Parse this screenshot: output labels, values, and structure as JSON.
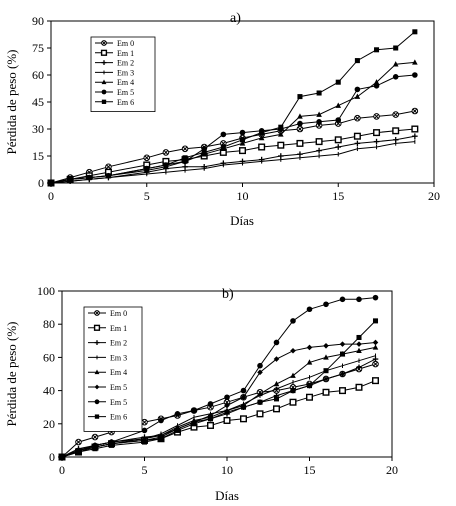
{
  "chart_data": [
    {
      "type": "line",
      "panel_label": "a)",
      "xlabel": "Días",
      "ylabel": "Pérdida de peso (%)",
      "xlim": [
        0,
        20
      ],
      "ylim": [
        0,
        90
      ],
      "xticks": [
        0,
        5,
        10,
        15,
        20
      ],
      "yticks": [
        0,
        15,
        30,
        45,
        60,
        75,
        90
      ],
      "grid": false,
      "legend": "upper-left",
      "series": [
        {
          "name": "Em 0",
          "marker": "circle-x",
          "x": [
            0,
            1,
            2,
            3,
            5,
            6,
            7,
            8,
            9,
            10,
            11,
            12,
            13,
            14,
            15,
            16,
            17,
            18,
            19
          ],
          "y": [
            0,
            3,
            6,
            9,
            14,
            17,
            19,
            20,
            22,
            25,
            27,
            29,
            30,
            32,
            33,
            36,
            37,
            38,
            40
          ]
        },
        {
          "name": "Em 1",
          "marker": "square-open",
          "x": [
            0,
            1,
            2,
            3,
            5,
            6,
            7,
            8,
            9,
            10,
            11,
            12,
            13,
            14,
            15,
            16,
            17,
            18,
            19
          ],
          "y": [
            0,
            2,
            4,
            6,
            10,
            12,
            13,
            15,
            17,
            18,
            20,
            21,
            22,
            23,
            24,
            26,
            28,
            29,
            30
          ]
        },
        {
          "name": "Em 2",
          "marker": "plus",
          "x": [
            0,
            1,
            2,
            3,
            5,
            6,
            7,
            8,
            9,
            10,
            11,
            12,
            13,
            14,
            15,
            16,
            17,
            18,
            19
          ],
          "y": [
            0,
            1,
            2,
            3,
            6,
            8,
            9,
            9,
            11,
            12,
            13,
            15,
            16,
            18,
            20,
            22,
            23,
            24,
            26
          ]
        },
        {
          "name": "Em 3",
          "marker": "tick",
          "x": [
            0,
            1,
            2,
            3,
            5,
            6,
            7,
            8,
            9,
            10,
            11,
            12,
            13,
            14,
            15,
            16,
            17,
            18,
            19
          ],
          "y": [
            0,
            1,
            2,
            3,
            5,
            6,
            7,
            8,
            10,
            11,
            12,
            13,
            14,
            15,
            16,
            19,
            20,
            22,
            23
          ]
        },
        {
          "name": "Em 4",
          "marker": "triangle",
          "x": [
            0,
            1,
            2,
            3,
            5,
            6,
            7,
            8,
            9,
            10,
            11,
            12,
            13,
            14,
            15,
            16,
            17,
            18,
            19
          ],
          "y": [
            0,
            2,
            3,
            4,
            7,
            9,
            12,
            16,
            19,
            22,
            25,
            27,
            37,
            38,
            43,
            48,
            56,
            66,
            67
          ]
        },
        {
          "name": "Em 5",
          "marker": "circle",
          "x": [
            0,
            1,
            2,
            3,
            5,
            6,
            7,
            8,
            9,
            10,
            11,
            12,
            13,
            14,
            15,
            16,
            17,
            18,
            19
          ],
          "y": [
            0,
            2,
            3,
            4,
            8,
            10,
            12,
            19,
            27,
            28,
            29,
            30,
            33,
            34,
            35,
            52,
            54,
            59,
            60
          ]
        },
        {
          "name": "Em 6",
          "marker": "square",
          "x": [
            0,
            1,
            2,
            3,
            5,
            6,
            7,
            8,
            9,
            10,
            11,
            12,
            13,
            14,
            15,
            16,
            17,
            18,
            19
          ],
          "y": [
            0,
            2,
            3,
            4,
            8,
            10,
            14,
            17,
            20,
            24,
            28,
            31,
            48,
            50,
            56,
            68,
            74,
            75,
            84
          ]
        }
      ]
    },
    {
      "type": "line",
      "panel_label": "b)",
      "xlabel": "Días",
      "ylabel": "Pérdida de peso (%)",
      "xlim": [
        0,
        20
      ],
      "ylim": [
        0,
        100
      ],
      "xticks": [
        0,
        5,
        10,
        15,
        20
      ],
      "yticks": [
        0,
        20,
        40,
        60,
        80,
        100
      ],
      "grid": false,
      "legend": "upper-left",
      "series": [
        {
          "name": "Em 0",
          "marker": "circle-x",
          "x": [
            0,
            1,
            2,
            3,
            5,
            6,
            7,
            8,
            9,
            10,
            11,
            12,
            13,
            14,
            15,
            16,
            17,
            18,
            19
          ],
          "y": [
            0,
            9,
            12,
            15,
            21,
            23,
            25,
            28,
            30,
            33,
            36,
            39,
            40,
            42,
            44,
            47,
            50,
            53,
            56
          ]
        },
        {
          "name": "Em 1",
          "marker": "square-open",
          "x": [
            0,
            1,
            2,
            3,
            5,
            6,
            7,
            8,
            9,
            10,
            11,
            12,
            13,
            14,
            15,
            16,
            17,
            18,
            19
          ],
          "y": [
            0,
            3,
            6,
            8,
            10,
            11,
            15,
            18,
            19,
            22,
            23,
            26,
            29,
            33,
            36,
            39,
            40,
            42,
            46
          ]
        },
        {
          "name": "Em 2",
          "marker": "plus",
          "x": [
            0,
            1,
            2,
            3,
            5,
            6,
            7,
            8,
            9,
            10,
            11,
            12,
            13,
            14,
            15,
            16,
            17,
            18,
            19
          ],
          "y": [
            0,
            5,
            7,
            9,
            12,
            13,
            17,
            21,
            23,
            26,
            30,
            33,
            37,
            40,
            43,
            47,
            50,
            54,
            59
          ]
        },
        {
          "name": "Em 3",
          "marker": "tick",
          "x": [
            0,
            1,
            2,
            3,
            5,
            6,
            7,
            8,
            9,
            10,
            11,
            12,
            13,
            14,
            15,
            16,
            17,
            18,
            19
          ],
          "y": [
            0,
            4,
            7,
            9,
            11,
            14,
            19,
            24,
            26,
            28,
            32,
            37,
            41,
            45,
            48,
            52,
            55,
            58,
            61
          ]
        },
        {
          "name": "Em 4",
          "marker": "triangle",
          "x": [
            0,
            1,
            2,
            3,
            5,
            6,
            7,
            8,
            9,
            10,
            11,
            12,
            13,
            14,
            15,
            16,
            17,
            18,
            19
          ],
          "y": [
            0,
            4,
            6,
            8,
            11,
            13,
            18,
            22,
            24,
            28,
            31,
            38,
            44,
            49,
            57,
            60,
            62,
            64,
            66
          ]
        },
        {
          "name": "Em 5",
          "marker": "diamond",
          "x": [
            0,
            1,
            2,
            3,
            5,
            6,
            7,
            8,
            9,
            10,
            11,
            12,
            13,
            14,
            15,
            16,
            17,
            18,
            19
          ],
          "y": [
            0,
            4,
            6,
            8,
            10,
            12,
            17,
            21,
            25,
            31,
            36,
            51,
            59,
            64,
            66,
            67,
            68,
            68,
            69
          ]
        },
        {
          "name": "Em 5",
          "marker": "circle",
          "x": [
            0,
            1,
            2,
            3,
            5,
            6,
            7,
            8,
            9,
            10,
            11,
            12,
            13,
            14,
            15,
            16,
            17,
            18,
            19
          ],
          "y": [
            0,
            4,
            7,
            9,
            16,
            22,
            26,
            28,
            32,
            36,
            40,
            55,
            69,
            82,
            89,
            92,
            95,
            95,
            96
          ]
        },
        {
          "name": "Em 6",
          "marker": "square",
          "x": [
            0,
            1,
            2,
            3,
            5,
            6,
            7,
            8,
            9,
            10,
            11,
            12,
            13,
            14,
            15,
            16,
            17,
            18,
            19
          ],
          "y": [
            0,
            3,
            5,
            7,
            9,
            11,
            16,
            20,
            23,
            27,
            30,
            33,
            35,
            40,
            43,
            52,
            62,
            72,
            82
          ]
        }
      ]
    }
  ]
}
